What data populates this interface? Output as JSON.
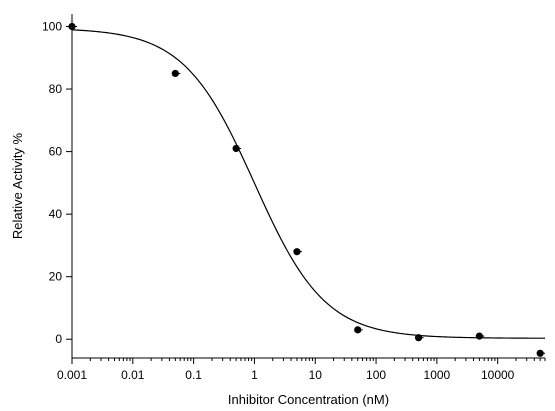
{
  "chart_data": {
    "type": "scatter",
    "xlabel": "Inhibitor Concentration (nM)",
    "ylabel": "Relative Activity %",
    "x_scale": "log",
    "xlim": [
      0.001,
      60000
    ],
    "ylim": [
      -6,
      104
    ],
    "x_ticks": [
      0.001,
      0.01,
      0.1,
      1,
      10,
      100,
      1000,
      10000
    ],
    "x_tick_labels": [
      "0.001",
      "0.01",
      "0.1",
      "1",
      "10",
      "100",
      "1000",
      "10000"
    ],
    "y_ticks": [
      0,
      20,
      40,
      60,
      80,
      100
    ],
    "y_tick_labels": [
      "0",
      "20",
      "40",
      "60",
      "80",
      "100"
    ],
    "grid": false,
    "series": [
      {
        "x": [
          0.001,
          0.05,
          0.5,
          5,
          50,
          500,
          5000,
          50000
        ],
        "y": [
          100,
          85,
          61,
          28,
          3,
          0.5,
          1,
          -4.5
        ]
      }
    ],
    "fit_curve": {
      "model": "four-parameter logistic",
      "top": 99.5,
      "bottom": 0.3,
      "ic50": 1.0,
      "hill": 0.75
    }
  }
}
